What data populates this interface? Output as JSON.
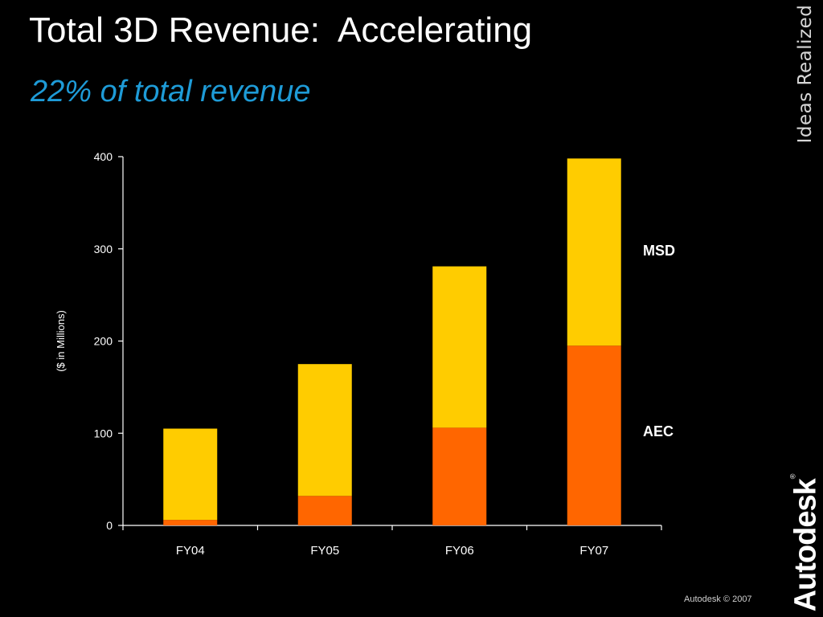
{
  "slide": {
    "title": "Total 3D Revenue:  Accelerating",
    "subtitle": "22% of total revenue",
    "tagline": "Ideas Realized",
    "logo": "Autodesk",
    "copyright": "Autodesk © 2007"
  },
  "colors": {
    "background": "#000000",
    "subtitle": "#1e9bd7",
    "aec": "#ff6600",
    "msd": "#ffcc00",
    "axis": "#ffffff"
  },
  "chart_data": {
    "type": "bar",
    "stacked": true,
    "title": "",
    "xlabel": "",
    "ylabel": "($ in Millions)",
    "ylim": [
      0,
      400
    ],
    "yticks": [
      0,
      100,
      200,
      300,
      400
    ],
    "categories": [
      "FY04",
      "FY05",
      "FY06",
      "FY07"
    ],
    "series": [
      {
        "name": "AEC",
        "values": [
          6,
          32,
          106,
          195
        ]
      },
      {
        "name": "MSD",
        "values": [
          99,
          143,
          175,
          203
        ]
      }
    ],
    "legend_placement": "right"
  }
}
